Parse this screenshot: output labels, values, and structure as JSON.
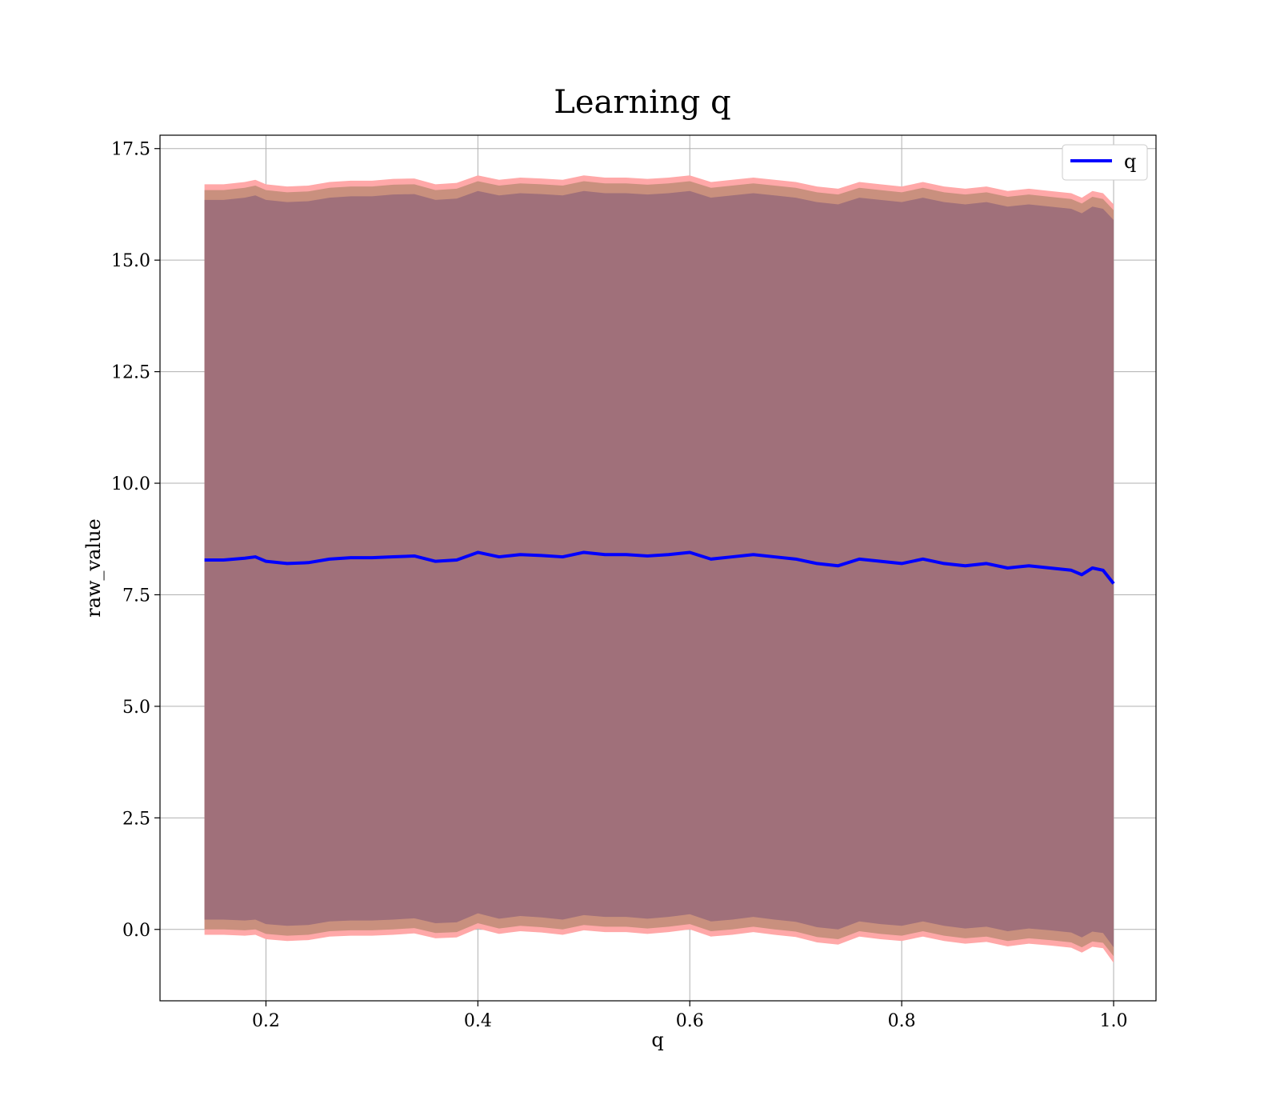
{
  "chart_data": {
    "type": "line",
    "title": "Learning q",
    "xlabel": "q",
    "ylabel": "raw_value",
    "xlim": [
      0.1,
      1.04
    ],
    "ylim": [
      -1.6,
      17.8
    ],
    "xticks": [
      0.2,
      0.4,
      0.6,
      0.8,
      1.0
    ],
    "xtick_labels": [
      "0.2",
      "0.4",
      "0.6",
      "0.8",
      "1.0"
    ],
    "yticks": [
      0.0,
      2.5,
      5.0,
      7.5,
      10.0,
      12.5,
      15.0,
      17.5
    ],
    "ytick_labels": [
      "0.0",
      "2.5",
      "5.0",
      "7.5",
      "10.0",
      "12.5",
      "15.0",
      "17.5"
    ],
    "grid": true,
    "legend": {
      "position": "top-right",
      "entries": [
        "q"
      ]
    },
    "colors": {
      "line": "#0000ff",
      "inner_band": "#a0707a",
      "middle_band": "#c9907e",
      "outer_band": "#ffa8a8",
      "grid": "#b0b0b0"
    },
    "series": [
      {
        "name": "q",
        "x": [
          0.142,
          0.16,
          0.18,
          0.19,
          0.2,
          0.22,
          0.24,
          0.26,
          0.28,
          0.3,
          0.32,
          0.34,
          0.36,
          0.38,
          0.4,
          0.42,
          0.44,
          0.46,
          0.48,
          0.5,
          0.52,
          0.54,
          0.56,
          0.58,
          0.6,
          0.62,
          0.64,
          0.66,
          0.68,
          0.7,
          0.72,
          0.74,
          0.76,
          0.78,
          0.8,
          0.82,
          0.84,
          0.86,
          0.88,
          0.9,
          0.92,
          0.94,
          0.96,
          0.97,
          0.98,
          0.99,
          1.0
        ],
        "y": [
          8.28,
          8.28,
          8.32,
          8.35,
          8.25,
          8.2,
          8.22,
          8.3,
          8.33,
          8.33,
          8.35,
          8.37,
          8.25,
          8.28,
          8.45,
          8.35,
          8.4,
          8.38,
          8.35,
          8.45,
          8.4,
          8.4,
          8.37,
          8.4,
          8.45,
          8.3,
          8.35,
          8.4,
          8.35,
          8.3,
          8.2,
          8.15,
          8.3,
          8.25,
          8.2,
          8.3,
          8.2,
          8.15,
          8.2,
          8.1,
          8.15,
          8.1,
          8.05,
          7.95,
          8.1,
          8.05,
          7.75
        ],
        "inner_lower": [
          0.22,
          0.22,
          0.2,
          0.22,
          0.12,
          0.08,
          0.1,
          0.18,
          0.2,
          0.2,
          0.22,
          0.25,
          0.14,
          0.16,
          0.36,
          0.24,
          0.3,
          0.27,
          0.22,
          0.32,
          0.28,
          0.28,
          0.24,
          0.28,
          0.34,
          0.18,
          0.22,
          0.28,
          0.22,
          0.17,
          0.05,
          0.0,
          0.18,
          0.12,
          0.08,
          0.18,
          0.08,
          0.02,
          0.06,
          -0.04,
          0.02,
          -0.02,
          -0.07,
          -0.18,
          -0.05,
          -0.08,
          -0.4
        ],
        "inner_upper": [
          16.35,
          16.35,
          16.4,
          16.45,
          16.35,
          16.3,
          16.32,
          16.4,
          16.43,
          16.43,
          16.47,
          16.48,
          16.35,
          16.38,
          16.55,
          16.45,
          16.5,
          16.48,
          16.45,
          16.55,
          16.5,
          16.5,
          16.47,
          16.5,
          16.55,
          16.4,
          16.45,
          16.5,
          16.45,
          16.4,
          16.3,
          16.25,
          16.4,
          16.35,
          16.3,
          16.4,
          16.3,
          16.25,
          16.3,
          16.2,
          16.25,
          16.2,
          16.15,
          16.05,
          16.2,
          16.15,
          15.9
        ],
        "middle_lower": [
          0.0,
          0.0,
          -0.02,
          0.0,
          -0.1,
          -0.14,
          -0.12,
          -0.04,
          -0.02,
          -0.02,
          0.0,
          0.03,
          -0.08,
          -0.06,
          0.14,
          0.02,
          0.08,
          0.05,
          0.0,
          0.1,
          0.06,
          0.06,
          0.02,
          0.06,
          0.12,
          -0.04,
          0.0,
          0.06,
          0.0,
          -0.05,
          -0.17,
          -0.22,
          -0.04,
          -0.1,
          -0.14,
          -0.04,
          -0.14,
          -0.2,
          -0.16,
          -0.26,
          -0.2,
          -0.24,
          -0.29,
          -0.4,
          -0.27,
          -0.3,
          -0.6
        ],
        "middle_upper": [
          16.57,
          16.57,
          16.62,
          16.67,
          16.57,
          16.52,
          16.54,
          16.62,
          16.65,
          16.65,
          16.69,
          16.7,
          16.57,
          16.6,
          16.77,
          16.67,
          16.72,
          16.7,
          16.67,
          16.77,
          16.72,
          16.72,
          16.69,
          16.72,
          16.77,
          16.62,
          16.67,
          16.72,
          16.67,
          16.62,
          16.52,
          16.47,
          16.62,
          16.57,
          16.52,
          16.62,
          16.52,
          16.47,
          16.52,
          16.42,
          16.47,
          16.42,
          16.37,
          16.27,
          16.42,
          16.37,
          16.12
        ],
        "outer_lower": [
          -0.12,
          -0.12,
          -0.14,
          -0.12,
          -0.22,
          -0.26,
          -0.24,
          -0.16,
          -0.14,
          -0.14,
          -0.12,
          -0.09,
          -0.2,
          -0.18,
          0.02,
          -0.1,
          -0.04,
          -0.07,
          -0.12,
          -0.02,
          -0.06,
          -0.06,
          -0.1,
          -0.06,
          0.0,
          -0.16,
          -0.12,
          -0.06,
          -0.12,
          -0.17,
          -0.29,
          -0.34,
          -0.16,
          -0.22,
          -0.26,
          -0.16,
          -0.26,
          -0.32,
          -0.28,
          -0.38,
          -0.32,
          -0.36,
          -0.41,
          -0.52,
          -0.39,
          -0.42,
          -0.75
        ],
        "outer_upper": [
          16.7,
          16.7,
          16.75,
          16.8,
          16.7,
          16.65,
          16.67,
          16.75,
          16.78,
          16.78,
          16.82,
          16.83,
          16.7,
          16.73,
          16.9,
          16.8,
          16.85,
          16.83,
          16.8,
          16.9,
          16.85,
          16.85,
          16.82,
          16.85,
          16.9,
          16.75,
          16.8,
          16.85,
          16.8,
          16.75,
          16.65,
          16.6,
          16.75,
          16.7,
          16.65,
          16.75,
          16.65,
          16.6,
          16.65,
          16.55,
          16.6,
          16.55,
          16.5,
          16.4,
          16.55,
          16.5,
          16.25
        ]
      }
    ]
  }
}
